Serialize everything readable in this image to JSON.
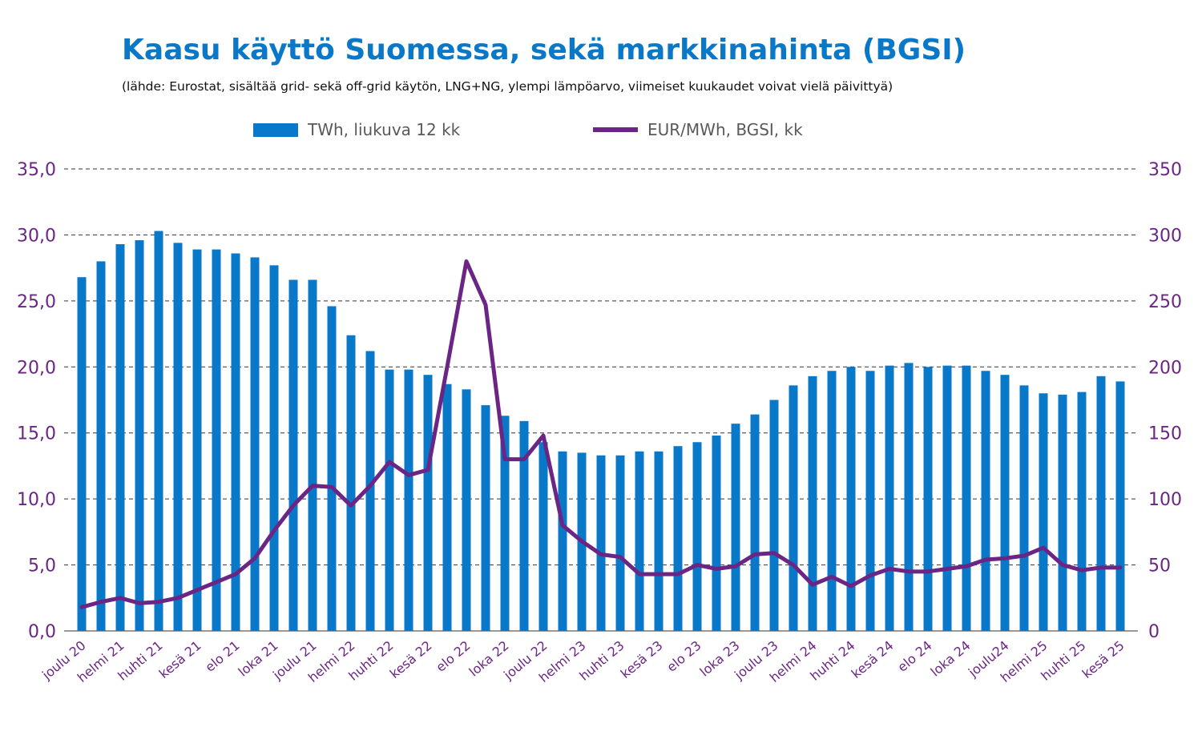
{
  "title": "Kaasu käyttö Suomessa, sekä markkinahinta (BGSI)",
  "subtitle": "(lähde: Eurostat, sisältää grid- sekä off-grid käytön, LNG+NG, ylempi lämpöarvo, viimeiset kuukaudet voivat vielä päivittyä)",
  "legend": {
    "bars": "TWh, liukuva 12 kk",
    "line": "EUR/MWh, BGSI, kk"
  },
  "colors": {
    "bars": "#0a78c8",
    "line": "#6a2585",
    "axis_labels": "#6a2585",
    "grid": "#333333"
  },
  "chart_data": {
    "type": "bar",
    "title": "Kaasu käyttö Suomessa, sekä markkinahinta (BGSI)",
    "grid": "dashed horizontal",
    "legend_position": "top",
    "y_left": {
      "ticks": [
        "0,0",
        "5,0",
        "10,0",
        "15,0",
        "20,0",
        "25,0",
        "30,0",
        "35,0"
      ],
      "range": [
        0,
        35
      ]
    },
    "y_right": {
      "ticks": [
        "0",
        "50",
        "100",
        "150",
        "200",
        "250",
        "300",
        "350"
      ],
      "range": [
        0,
        350
      ]
    },
    "x_tick_labels": [
      "joulu 20",
      "helmi 21",
      "huhti 21",
      "kesä 21",
      "elo 21",
      "loka 21",
      "joulu 21",
      "helmi 22",
      "huhti 22",
      "kesä 22",
      "elo 22",
      "loka 22",
      "joulu 22",
      "helmi 23",
      "huhti 23",
      "kesä 23",
      "elo 23",
      "loka 23",
      "joulu 23",
      "helmi 24",
      "huhti 24",
      "kesä 24",
      "elo 24",
      "loka 24",
      "joulu24",
      "helmi 25",
      "huhti 25",
      "kesä 25"
    ],
    "series": [
      {
        "name": "TWh, liukuva 12 kk",
        "type": "bar",
        "axis": "left",
        "values": [
          26.8,
          28.0,
          29.3,
          29.6,
          30.3,
          29.4,
          28.9,
          28.9,
          28.6,
          28.3,
          27.7,
          26.6,
          26.6,
          24.6,
          22.4,
          21.2,
          19.8,
          19.8,
          19.4,
          18.7,
          18.3,
          17.1,
          16.3,
          15.9,
          14.3,
          13.6,
          13.5,
          13.3,
          13.3,
          13.6,
          13.6,
          14.0,
          14.3,
          14.8,
          15.7,
          16.4,
          17.5,
          18.6,
          19.3,
          19.7,
          20.0,
          19.7,
          20.1,
          20.3,
          20.0,
          20.1,
          20.1,
          19.7,
          19.4,
          18.6,
          18.0,
          17.9,
          18.1,
          19.3,
          18.9
        ]
      },
      {
        "name": "EUR/MWh, BGSI, kk",
        "type": "line",
        "axis": "right",
        "values": [
          18,
          22,
          25,
          21,
          22,
          25,
          31,
          37,
          43,
          55,
          76,
          95,
          110,
          109,
          95,
          110,
          128,
          118,
          122,
          200,
          280,
          247,
          130,
          130,
          148,
          80,
          68,
          58,
          56,
          43,
          43,
          43,
          50,
          47,
          49,
          58,
          59,
          50,
          35,
          41,
          34,
          42,
          47,
          45,
          45,
          47,
          49,
          54,
          55,
          57,
          63,
          50,
          46,
          48,
          48
        ]
      }
    ]
  }
}
